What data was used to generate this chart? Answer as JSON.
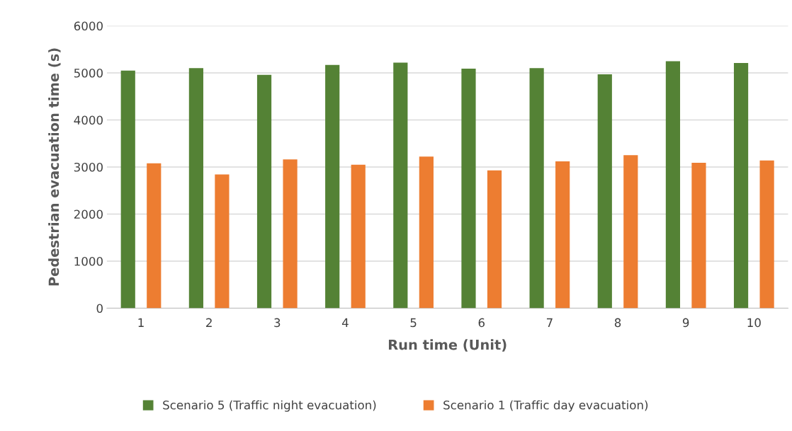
{
  "chart_data": {
    "type": "bar",
    "xlabel": "Run time (Unit)",
    "ylabel": "Pedestrian evacuation time (s)",
    "categories": [
      "1",
      "2",
      "3",
      "4",
      "5",
      "6",
      "7",
      "8",
      "9",
      "10"
    ],
    "series": [
      {
        "name": "Scenario 5 (Traffic night evacuation)",
        "color": "#548235",
        "values": [
          5050,
          5100,
          4960,
          5170,
          5220,
          5090,
          5100,
          4970,
          5250,
          5210
        ]
      },
      {
        "name": "Scenario 1 (Traffic day evacuation)",
        "color": "#ed7d31",
        "values": [
          3080,
          2840,
          3160,
          3050,
          3220,
          2930,
          3120,
          3250,
          3090,
          3140
        ]
      }
    ],
    "ylim": [
      0,
      6000
    ],
    "yticks": [
      0,
      1000,
      2000,
      3000,
      4000,
      5000,
      6000
    ],
    "grid": "y",
    "legend": "bottom"
  }
}
